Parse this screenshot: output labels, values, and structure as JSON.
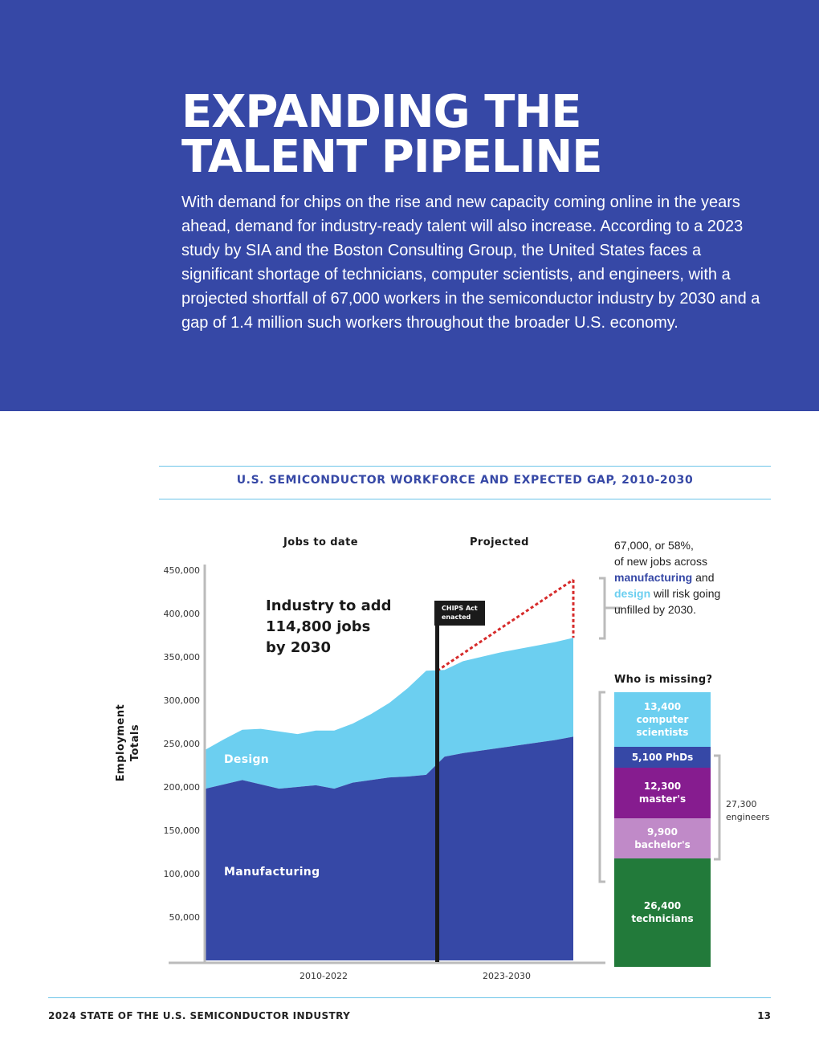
{
  "header": {
    "title_line1": "EXPANDING THE",
    "title_line2": "TALENT PIPELINE",
    "intro": "With demand for chips on the rise and new capacity coming online in the years ahead, demand for industry-ready talent will also increase. According to a 2023 study by SIA and the Boston Consulting Group, the United States faces a significant shortage of technicians, computer scientists, and engineers, with a projected shortfall of 67,000 workers in the semiconductor industry by 2030 and a gap of 1.4 million such workers throughout the broader U.S. economy."
  },
  "chart_data": {
    "type": "area",
    "title": "U.S. SEMICONDUCTOR WORKFORCE AND EXPECTED GAP, 2010-2030",
    "ylabel_line1": "Employment",
    "ylabel_line2": "Totals",
    "ylim": [
      0,
      450000
    ],
    "yticks": [
      {
        "value": 450000,
        "label": "450,000"
      },
      {
        "value": 400000,
        "label": "400,000"
      },
      {
        "value": 350000,
        "label": "350,000"
      },
      {
        "value": 300000,
        "label": "300,000"
      },
      {
        "value": 250000,
        "label": "250,000"
      },
      {
        "value": 200000,
        "label": "200,000"
      },
      {
        "value": 150000,
        "label": "150,000"
      },
      {
        "value": 100000,
        "label": "100,000"
      },
      {
        "value": 50000,
        "label": "50,000"
      }
    ],
    "xlabels": {
      "history": "2010-2022",
      "projection": "2023-2030"
    },
    "phases": {
      "history": "Jobs to date",
      "projection": "Projected"
    },
    "x": [
      2010,
      2011,
      2012,
      2013,
      2014,
      2015,
      2016,
      2017,
      2018,
      2019,
      2020,
      2021,
      2022,
      2023,
      2024,
      2025,
      2026,
      2027,
      2028,
      2029,
      2030
    ],
    "series": [
      {
        "name": "Manufacturing",
        "color": "#3648a6",
        "values": [
          198000,
          203000,
          208000,
          203000,
          198000,
          200000,
          202000,
          198000,
          205000,
          208000,
          211000,
          212000,
          214000,
          235000,
          239000,
          242000,
          245000,
          248000,
          251000,
          254000,
          258000
        ]
      },
      {
        "name": "Design",
        "color": "#6ccff0",
        "values": [
          45000,
          52000,
          58000,
          64000,
          66000,
          61000,
          63000,
          67000,
          68000,
          76000,
          86000,
          102000,
          120000,
          100000,
          106000,
          108000,
          110000,
          111000,
          112000,
          113000,
          114000
        ]
      }
    ],
    "chips_event": {
      "year": 2022.6,
      "label_line1": "CHIPS Act",
      "label_line2": "enacted"
    },
    "demand_line": {
      "start": [
        2022.6,
        334000
      ],
      "end": [
        2030,
        439000
      ],
      "color": "#d62b2b"
    },
    "callout": {
      "line1": "Industry to add",
      "line2": "114,800 jobs",
      "line3": "by 2030"
    },
    "gap_note": {
      "line1": "67,000, or 58%,",
      "line2": "of new jobs across",
      "kw_manufacturing": "manufacturing",
      "and": " and",
      "kw_design": "design",
      "line4_rest": " will risk going",
      "line5": "unfilled by 2030."
    },
    "missing": {
      "title": "Who is missing?",
      "total": 67000,
      "segments": [
        {
          "value": 13400,
          "value_label": "13,400",
          "label1": "computer",
          "label2": "scientists",
          "color": "#6ccff0"
        },
        {
          "value": 5100,
          "value_label": "5,100 PhDs",
          "label1": "",
          "label2": "",
          "color": "#3648a6"
        },
        {
          "value": 12300,
          "value_label": "12,300",
          "label1": "master's",
          "label2": "",
          "color": "#861c8f"
        },
        {
          "value": 9900,
          "value_label": "9,900",
          "label1": "bachelor's",
          "label2": "",
          "color": "#c08ac8"
        },
        {
          "value": 26400,
          "value_label": "26,400",
          "label1": "technicians",
          "label2": "",
          "color": "#227a3a"
        }
      ],
      "engineers_line1": "27,300",
      "engineers_line2": "engineers"
    }
  },
  "footer": {
    "left": "2024 STATE OF THE U.S. SEMICONDUCTOR INDUSTRY",
    "page": "13"
  }
}
